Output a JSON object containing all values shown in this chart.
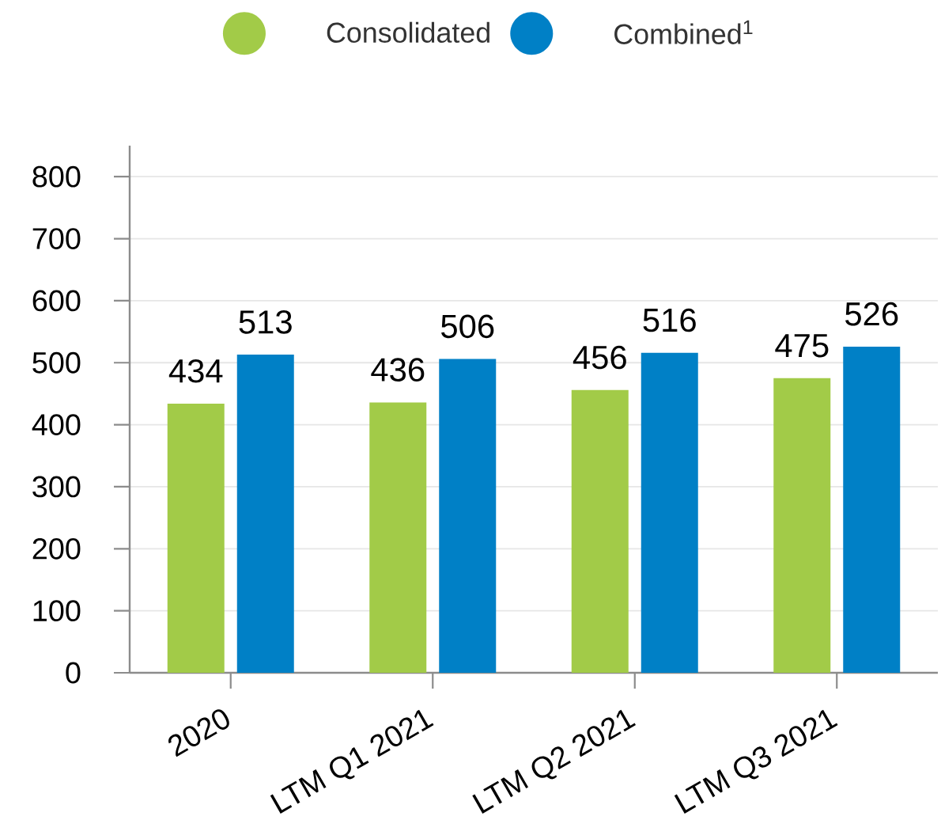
{
  "chart_data": {
    "type": "bar",
    "categories": [
      "2020",
      "LTM Q1 2021",
      "LTM Q2 2021",
      "LTM Q3 2021"
    ],
    "series": [
      {
        "name": "Consolidated",
        "color": "#a2cb48",
        "values": [
          434,
          436,
          456,
          475
        ]
      },
      {
        "name": "Combined$^{1}$",
        "color": "#0080c6",
        "values": [
          513,
          506,
          516,
          526
        ]
      }
    ],
    "ylim": [
      0,
      850
    ],
    "yticks": [
      0,
      100,
      200,
      300,
      400,
      500,
      600,
      700,
      800
    ],
    "grid": "y",
    "legend": "top",
    "data_labels": true
  }
}
